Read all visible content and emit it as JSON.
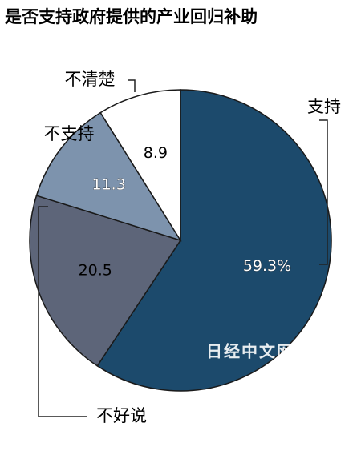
{
  "chart_data": {
    "type": "pie",
    "title": "是否支持政府提供的产业回归补助",
    "categories": [
      "支持",
      "不好说",
      "不支持",
      "不清楚"
    ],
    "values": [
      59.3,
      20.5,
      11.3,
      8.9
    ],
    "value_labels": [
      "59.3%",
      "20.5",
      "11.3",
      "8.9"
    ],
    "colors": [
      "#1c4a6c",
      "#5d6579",
      "#7d93ad",
      "#ffffff"
    ],
    "watermark": "日经中文网"
  }
}
